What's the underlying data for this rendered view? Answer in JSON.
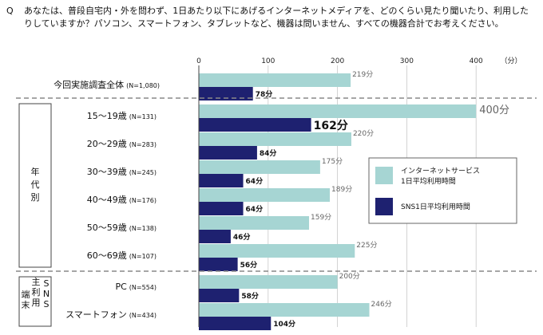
{
  "question": {
    "prefix": "Q",
    "text": "あなたは、普段自宅内・外を問わず、1日あたり以下にあげるインターネットメディアを、どのくらい見たり聞いたり、利用したりしていますか？パソコン、スマートフォン、タブレットなど、機器は問いません、すべての機器合計でお考えください。"
  },
  "chart_data": {
    "type": "bar",
    "orientation": "horizontal",
    "xlim": [
      0,
      400
    ],
    "x_ticks": [
      "0",
      "100",
      "200",
      "300",
      "400"
    ],
    "unit_label": "（分）",
    "grid": true,
    "legend_position": "right",
    "groups": [
      {
        "label": "",
        "rows": [
          {
            "label": "今回実施調査全体",
            "n": "(N=1,080)",
            "internet": 219,
            "sns": 78,
            "internet_label": "219分",
            "sns_label": "78分"
          }
        ]
      },
      {
        "label": "年代別",
        "rows": [
          {
            "label": "15～19歳",
            "n": "(N=131)",
            "internet": 400,
            "sns": 162,
            "internet_label": "400分",
            "sns_label": "162分"
          },
          {
            "label": "20～29歳",
            "n": "(N=283)",
            "internet": 220,
            "sns": 84,
            "internet_label": "220分",
            "sns_label": "84分"
          },
          {
            "label": "30～39歳",
            "n": "(N=245)",
            "internet": 175,
            "sns": 64,
            "internet_label": "175分",
            "sns_label": "64分"
          },
          {
            "label": "40～49歳",
            "n": "(N=176)",
            "internet": 189,
            "sns": 64,
            "internet_label": "189分",
            "sns_label": "64分"
          },
          {
            "label": "50～59歳",
            "n": "(N=138)",
            "internet": 159,
            "sns": 46,
            "internet_label": "159分",
            "sns_label": "46分"
          },
          {
            "label": "60～69歳",
            "n": "(N=107)",
            "internet": 225,
            "sns": 56,
            "internet_label": "225分",
            "sns_label": "56分"
          }
        ]
      },
      {
        "label": "端末 主利用 SNS",
        "rows": [
          {
            "label": "PC",
            "n": "(N=554)",
            "internet": 200,
            "sns": 58,
            "internet_label": "200分",
            "sns_label": "58分"
          },
          {
            "label": "スマートフォン",
            "n": "(N=434)",
            "internet": 246,
            "sns": 104,
            "internet_label": "246分",
            "sns_label": "104分"
          }
        ]
      }
    ],
    "group_side_labels": [
      {
        "lines": [
          "年",
          "代",
          "別"
        ]
      },
      {
        "columns": [
          [
            "端",
            "末"
          ],
          [
            "主",
            "利",
            "用"
          ],
          [
            "S",
            "N",
            "S"
          ]
        ]
      }
    ],
    "series": [
      {
        "name": "インターネットサービス1日平均利用時間",
        "legend_lines": [
          "インターネットサービス",
          "1日平均利用時間"
        ],
        "key": "internet",
        "color": "#a6d5d3"
      },
      {
        "name": "SNS1日平均利用時間",
        "legend_lines": [
          "SNS1日平均利用時間"
        ],
        "key": "sns",
        "color": "#1e2170"
      }
    ]
  }
}
